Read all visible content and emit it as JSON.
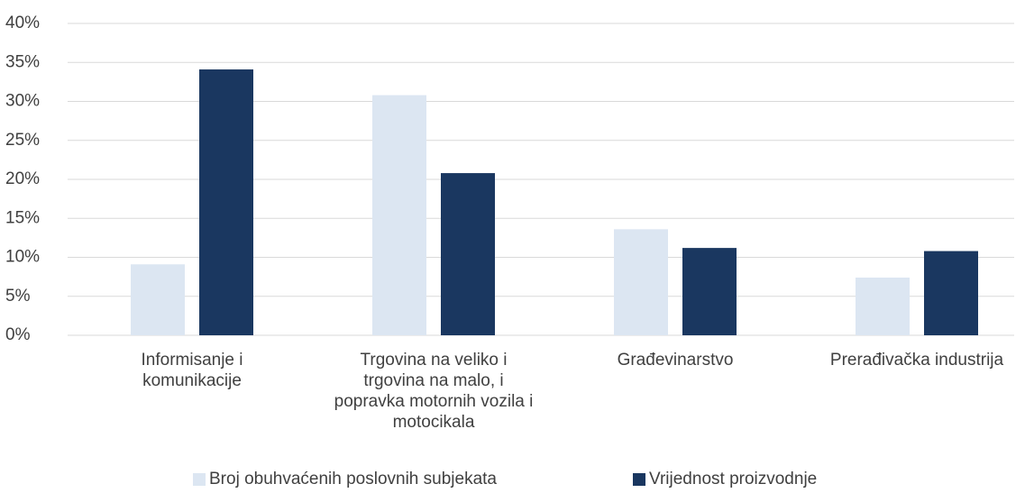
{
  "chart_data": {
    "type": "bar",
    "categories": [
      "Informisanje i komunikacije",
      "Trgovina na veliko i trgovina na malo, i popravka motornih vozila i motocikala",
      "Građevinarstvo",
      "Prerađivačka industrija"
    ],
    "series": [
      {
        "name": "Broj obuhvaćenih poslovnih subjekata",
        "color": "#dce6f2",
        "values": [
          9.1,
          30.8,
          13.6,
          7.4
        ]
      },
      {
        "name": "Vrijednost proizvodnje",
        "color": "#1a3760",
        "values": [
          34.1,
          20.8,
          11.2,
          10.8
        ]
      }
    ],
    "ylim": [
      0,
      40
    ],
    "yticks": [
      {
        "value": 0,
        "label": "0%"
      },
      {
        "value": 5,
        "label": "5%"
      },
      {
        "value": 10,
        "label": "10%"
      },
      {
        "value": 15,
        "label": "15%"
      },
      {
        "value": 20,
        "label": "20%"
      },
      {
        "value": 25,
        "label": "25%"
      },
      {
        "value": 30,
        "label": "30%"
      },
      {
        "value": 35,
        "label": "35%"
      },
      {
        "value": 40,
        "label": "40%"
      }
    ],
    "grid": true,
    "legend": "bottom"
  }
}
